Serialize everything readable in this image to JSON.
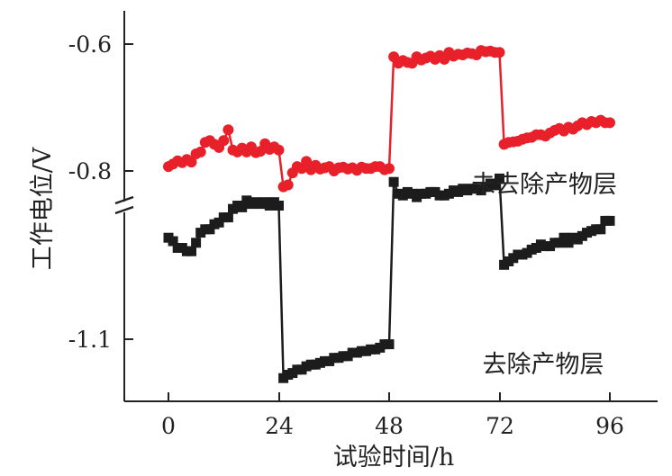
{
  "chart_data": {
    "type": "line",
    "title": "",
    "xlabel": "试验时间/h",
    "ylabel": "工作电位/V",
    "xlim": [
      0,
      96
    ],
    "x_ticks": [
      0,
      24,
      48,
      72,
      96
    ],
    "x_tick_labels": [
      "0",
      "24",
      "48",
      "72",
      "96"
    ],
    "y_axis_break": true,
    "y_ticks": [
      -0.6,
      -0.8,
      -1.1
    ],
    "y_tick_labels": [
      "-0.6",
      "-0.8",
      "-1.1"
    ],
    "legend": "none",
    "series": [
      {
        "name": "未去除产物层",
        "color": "#e8202a",
        "marker": "circle",
        "x": [
          0,
          1,
          2,
          3,
          4,
          5,
          6,
          7,
          8,
          9,
          10,
          11,
          12,
          13,
          14,
          15,
          16,
          17,
          18,
          19,
          20,
          21,
          22,
          23,
          24,
          25,
          26,
          27,
          28,
          29,
          30,
          31,
          32,
          33,
          34,
          35,
          36,
          37,
          38,
          39,
          40,
          41,
          42,
          43,
          44,
          45,
          46,
          47,
          48,
          49,
          50,
          51,
          52,
          53,
          54,
          55,
          56,
          57,
          58,
          59,
          60,
          61,
          62,
          63,
          64,
          65,
          66,
          67,
          68,
          69,
          70,
          71,
          72,
          73,
          74,
          75,
          76,
          77,
          78,
          79,
          80,
          81,
          82,
          83,
          84,
          85,
          86,
          87,
          88,
          89,
          90,
          91,
          92,
          93,
          94,
          95,
          96
        ],
        "y": [
          -0.793,
          -0.789,
          -0.784,
          -0.787,
          -0.782,
          -0.786,
          -0.773,
          -0.77,
          -0.755,
          -0.752,
          -0.758,
          -0.763,
          -0.752,
          -0.735,
          -0.767,
          -0.77,
          -0.764,
          -0.77,
          -0.762,
          -0.771,
          -0.769,
          -0.757,
          -0.766,
          -0.762,
          -0.767,
          -0.825,
          -0.822,
          -0.803,
          -0.793,
          -0.796,
          -0.785,
          -0.798,
          -0.791,
          -0.797,
          -0.795,
          -0.793,
          -0.8,
          -0.795,
          -0.794,
          -0.797,
          -0.795,
          -0.799,
          -0.794,
          -0.796,
          -0.796,
          -0.793,
          -0.793,
          -0.798,
          -0.796,
          -0.62,
          -0.63,
          -0.626,
          -0.629,
          -0.63,
          -0.62,
          -0.625,
          -0.622,
          -0.619,
          -0.624,
          -0.618,
          -0.624,
          -0.613,
          -0.619,
          -0.616,
          -0.617,
          -0.614,
          -0.615,
          -0.617,
          -0.61,
          -0.612,
          -0.611,
          -0.613,
          -0.613,
          -0.758,
          -0.755,
          -0.754,
          -0.753,
          -0.75,
          -0.748,
          -0.747,
          -0.743,
          -0.743,
          -0.745,
          -0.74,
          -0.736,
          -0.733,
          -0.737,
          -0.731,
          -0.734,
          -0.729,
          -0.724,
          -0.727,
          -0.722,
          -0.724,
          -0.72,
          -0.724,
          -0.724
        ]
      },
      {
        "name": "去除产物层",
        "color": "#1c1c1c",
        "marker": "square",
        "x": [
          0,
          1,
          2,
          3,
          4,
          5,
          6,
          7,
          8,
          9,
          10,
          11,
          12,
          13,
          14,
          15,
          16,
          17,
          18,
          19,
          20,
          21,
          22,
          23,
          24,
          25,
          26,
          27,
          28,
          29,
          30,
          31,
          32,
          33,
          34,
          35,
          36,
          37,
          38,
          39,
          40,
          41,
          42,
          43,
          44,
          45,
          46,
          47,
          48,
          49,
          50,
          51,
          52,
          53,
          54,
          55,
          56,
          57,
          58,
          59,
          60,
          61,
          62,
          63,
          64,
          65,
          66,
          67,
          68,
          69,
          70,
          71,
          72,
          73,
          74,
          75,
          76,
          77,
          78,
          79,
          80,
          81,
          82,
          83,
          84,
          85,
          86,
          87,
          88,
          89,
          90,
          91,
          92,
          93,
          94,
          95,
          96
        ],
        "y": [
          -1.04,
          -1.042,
          -1.046,
          -1.046,
          -1.048,
          -1.048,
          -1.043,
          -1.037,
          -1.035,
          -1.035,
          -1.032,
          -1.031,
          -1.028,
          -1.028,
          -1.023,
          -1.021,
          -1.022,
          -1.018,
          -1.02,
          -1.019,
          -1.02,
          -1.019,
          -1.021,
          -1.019,
          -1.021,
          -1.123,
          -1.121,
          -1.12,
          -1.118,
          -1.118,
          -1.116,
          -1.115,
          -1.115,
          -1.114,
          -1.113,
          -1.113,
          -1.111,
          -1.111,
          -1.11,
          -1.11,
          -1.108,
          -1.108,
          -1.107,
          -1.107,
          -1.106,
          -1.106,
          -1.105,
          -1.103,
          -1.103,
          -1.007,
          -1.014,
          -1.015,
          -1.013,
          -1.014,
          -1.016,
          -1.014,
          -1.014,
          -1.013,
          -1.013,
          -1.015,
          -1.015,
          -1.014,
          -1.012,
          -1.013,
          -1.011,
          -1.012,
          -1.011,
          -1.011,
          -1.012,
          -1.01,
          -1.008,
          -1.009,
          -1.005,
          -1.056,
          -1.054,
          -1.052,
          -1.05,
          -1.05,
          -1.049,
          -1.047,
          -1.046,
          -1.044,
          -1.045,
          -1.045,
          -1.043,
          -1.043,
          -1.04,
          -1.043,
          -1.04,
          -1.041,
          -1.039,
          -1.037,
          -1.036,
          -1.035,
          -1.035,
          -1.03,
          -1.03
        ]
      }
    ]
  }
}
